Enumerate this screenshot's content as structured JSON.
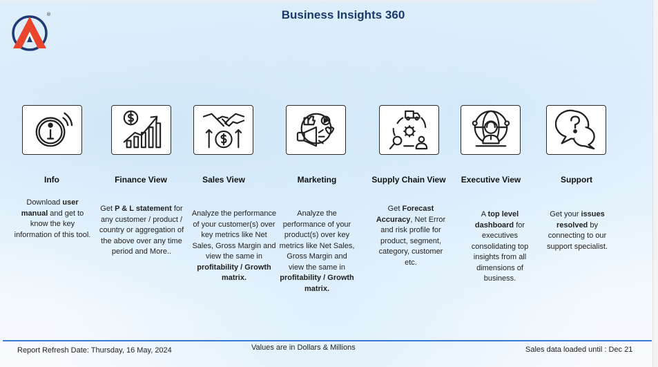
{
  "header": {
    "title": "Business Insights 360",
    "registered_mark": "®"
  },
  "columns": [
    {
      "title": "Info",
      "desc": [
        {
          "t": "Download "
        },
        {
          "t": "user manual",
          "b": true
        },
        {
          "t": " and get to know the key information of this tool."
        }
      ]
    },
    {
      "title": "Finance View",
      "desc": [
        {
          "t": "Get "
        },
        {
          "t": " P & L statement",
          "b": true
        },
        {
          "t": " for any customer / product / country or aggregation of the above over any time period and More.."
        }
      ]
    },
    {
      "title": "Sales View",
      "desc": [
        {
          "t": "Analyze the performance of your customer(s) over key metrics like Net Sales, Gross Margin and view the same in "
        },
        {
          "t": "profitability / Growth matrix.",
          "b": true
        }
      ]
    },
    {
      "title": "Marketing",
      "desc": [
        {
          "t": "Analyze the performance of your product(s) over key metrics like Net Sales, Gross Margin and view the same in "
        },
        {
          "t": "profitability / Growth matrix.",
          "b": true
        }
      ]
    },
    {
      "title": "Supply Chain View",
      "desc": [
        {
          "t": "Get "
        },
        {
          "t": "Forecast Accuracy",
          "b": true
        },
        {
          "t": ", Net Error and risk profile for product, segment, category, customer etc."
        }
      ]
    },
    {
      "title": "Executive View",
      "desc": [
        {
          "t": "A "
        },
        {
          "t": "top level dashboard",
          "b": true
        },
        {
          "t": " for executives consolidating top insights from all dimensions of business."
        }
      ]
    },
    {
      "title": "Support",
      "desc": [
        {
          "t": "Get your "
        },
        {
          "t": "issues resolved",
          "b": true
        },
        {
          "t": " by connecting to our support specialist."
        }
      ]
    }
  ],
  "icons": [
    "info-icon",
    "finance-growth-icon",
    "handshake-sales-icon",
    "marketing-megaphone-icon",
    "supply-chain-icon",
    "executive-globe-icon",
    "support-chat-icon"
  ],
  "footer": {
    "refresh_label": "Report Refresh Date: ",
    "refresh_date": "Thursday, 16 May, 2024",
    "units_note": "Values are in Dollars & Millions",
    "sales_loaded": "Sales data loaded until : Dec 21"
  },
  "colors": {
    "title": "#1b3a6b",
    "footer_line": "#3a7bd5",
    "logo_orange": "#e8452c",
    "logo_blue": "#1f3b73"
  }
}
